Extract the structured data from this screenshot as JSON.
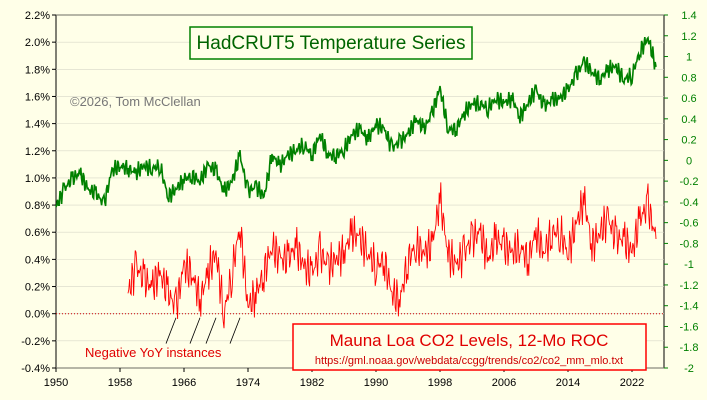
{
  "chart_data": {
    "type": "line",
    "x_range": [
      1950,
      2026
    ],
    "x_ticks": [
      "1950",
      "1958",
      "1966",
      "1974",
      "1982",
      "1990",
      "1998",
      "2006",
      "2014",
      "2022"
    ],
    "x_tick_values": [
      1950,
      1958,
      1966,
      1974,
      1982,
      1990,
      1998,
      2006,
      2014,
      2022
    ],
    "left_axis": {
      "range": [
        -0.4,
        2.2
      ],
      "ticks": [
        "2.2%",
        "2.0%",
        "1.8%",
        "1.6%",
        "1.4%",
        "1.2%",
        "1.0%",
        "0.8%",
        "0.6%",
        "0.4%",
        "0.2%",
        "0.0%",
        "-0.2%",
        "-0.4%"
      ],
      "tick_values": [
        2.2,
        2.0,
        1.8,
        1.6,
        1.4,
        1.2,
        1.0,
        0.8,
        0.6,
        0.4,
        0.2,
        0.0,
        -0.2,
        -0.4
      ]
    },
    "right_axis": {
      "range": [
        -2,
        1.4
      ],
      "ticks": [
        "1.4",
        "1.2",
        "1",
        "0.8",
        "0.6",
        "0.4",
        "0.2",
        "0",
        "-0.2",
        "-0.4",
        "-0.6",
        "-0.8",
        "-1",
        "-1.2",
        "-1.4",
        "-1.6",
        "-1.8",
        "-2"
      ],
      "tick_values": [
        1.4,
        1.2,
        1,
        0.8,
        0.6,
        0.4,
        0.2,
        0,
        -0.2,
        -0.4,
        -0.6,
        -0.8,
        -1,
        -1.2,
        -1.4,
        -1.6,
        -1.8,
        -2
      ]
    },
    "series": [
      {
        "name": "HadCRUT5 Temperature Series",
        "axis": "right",
        "color": "#008000",
        "x": [
          1950,
          1951,
          1952,
          1953,
          1954,
          1955,
          1956,
          1957,
          1958,
          1959,
          1960,
          1961,
          1962,
          1963,
          1964,
          1965,
          1966,
          1967,
          1968,
          1969,
          1970,
          1971,
          1972,
          1973,
          1974,
          1975,
          1976,
          1977,
          1978,
          1979,
          1980,
          1981,
          1982,
          1983,
          1984,
          1985,
          1986,
          1987,
          1988,
          1989,
          1990,
          1991,
          1992,
          1993,
          1994,
          1995,
          1996,
          1997,
          1998,
          1999,
          2000,
          2001,
          2002,
          2003,
          2004,
          2005,
          2006,
          2007,
          2008,
          2009,
          2010,
          2011,
          2012,
          2013,
          2014,
          2015,
          2016,
          2017,
          2018,
          2019,
          2020,
          2021,
          2022,
          2023,
          2024,
          2025
        ],
        "y": [
          -0.45,
          -0.28,
          -0.18,
          -0.12,
          -0.28,
          -0.32,
          -0.42,
          -0.1,
          -0.05,
          -0.08,
          -0.12,
          -0.05,
          -0.08,
          -0.05,
          -0.35,
          -0.28,
          -0.18,
          -0.15,
          -0.2,
          -0.05,
          -0.1,
          -0.3,
          -0.2,
          0.05,
          -0.3,
          -0.25,
          -0.35,
          0.05,
          -0.05,
          0.05,
          0.1,
          0.15,
          0.05,
          0.25,
          0.05,
          0.05,
          0.1,
          0.25,
          0.3,
          0.2,
          0.35,
          0.3,
          0.12,
          0.18,
          0.25,
          0.4,
          0.3,
          0.45,
          0.7,
          0.3,
          0.3,
          0.45,
          0.55,
          0.55,
          0.5,
          0.6,
          0.55,
          0.6,
          0.42,
          0.55,
          0.68,
          0.52,
          0.58,
          0.6,
          0.68,
          0.82,
          0.95,
          0.85,
          0.78,
          0.88,
          0.9,
          0.78,
          0.82,
          1.05,
          1.18,
          0.9
        ]
      },
      {
        "name": "Mauna Loa CO2 Levels, 12-Mo ROC",
        "axis": "left",
        "color": "#ff0000",
        "x": [
          1959,
          1960,
          1961,
          1962,
          1963,
          1964,
          1965,
          1966,
          1967,
          1968,
          1969,
          1970,
          1971,
          1972,
          1973,
          1974,
          1975,
          1976,
          1977,
          1978,
          1979,
          1980,
          1981,
          1982,
          1983,
          1984,
          1985,
          1986,
          1987,
          1988,
          1989,
          1990,
          1991,
          1992,
          1993,
          1994,
          1995,
          1996,
          1997,
          1998,
          1999,
          2000,
          2001,
          2002,
          2003,
          2004,
          2005,
          2006,
          2007,
          2008,
          2009,
          2010,
          2011,
          2012,
          2013,
          2014,
          2015,
          2016,
          2017,
          2018,
          2019,
          2020,
          2021,
          2022,
          2023,
          2024,
          2025
        ],
        "y": [
          0.15,
          0.35,
          0.25,
          0.2,
          0.3,
          0.15,
          0.05,
          0.35,
          0.3,
          0.1,
          0.3,
          0.45,
          0.0,
          0.3,
          0.65,
          0.05,
          0.15,
          0.3,
          0.5,
          0.4,
          0.4,
          0.5,
          0.35,
          0.3,
          0.45,
          0.35,
          0.4,
          0.45,
          0.6,
          0.55,
          0.45,
          0.35,
          0.4,
          0.15,
          0.1,
          0.4,
          0.5,
          0.45,
          0.5,
          0.85,
          0.45,
          0.35,
          0.45,
          0.55,
          0.6,
          0.4,
          0.55,
          0.5,
          0.45,
          0.5,
          0.4,
          0.6,
          0.45,
          0.6,
          0.6,
          0.45,
          0.65,
          0.85,
          0.5,
          0.6,
          0.7,
          0.55,
          0.55,
          0.45,
          0.7,
          0.8,
          0.55
        ]
      }
    ],
    "title_temperature": "HadCRUT5 Temperature Series",
    "title_co2": "Mauna Loa CO2 Levels, 12-Mo ROC",
    "source_url": "https://gml.noaa.gov/webdata/ccgg/trends/co2/co2_mm_mlo.txt",
    "copyright": "©2026, Tom McClellan",
    "annotation": "Negative YoY instances",
    "annotation_years": [
      1965,
      1968,
      1970,
      1973
    ]
  }
}
